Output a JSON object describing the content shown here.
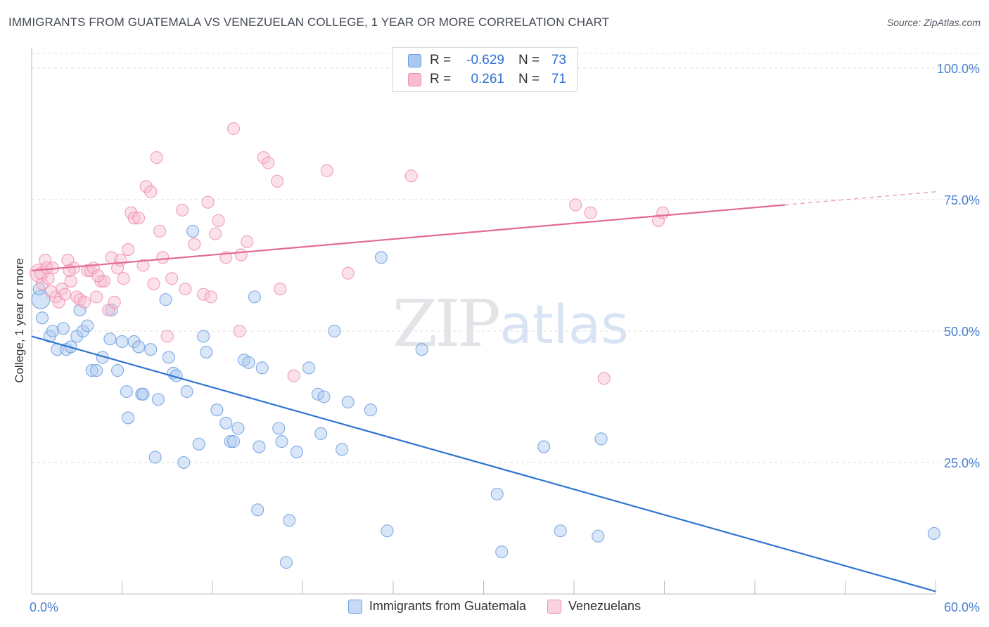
{
  "title": "IMMIGRANTS FROM GUATEMALA VS VENEZUELAN COLLEGE, 1 YEAR OR MORE CORRELATION CHART",
  "source": "Source: ZipAtlas.com",
  "watermark": {
    "zip": "ZIP",
    "atlas": "atlas"
  },
  "colors": {
    "blue_fill": "#aac8f0",
    "blue_stroke": "#6a9ee0",
    "blue_line": "#2f74d0",
    "pink_fill": "#f7bcd0",
    "pink_stroke": "#ee8fb0",
    "pink_line": "#e36a96",
    "grid": "#dddddd",
    "tick_label": "#4a7fd0"
  },
  "legend": {
    "rows": [
      {
        "r_label": "R =",
        "r_value": "-0.629",
        "n_label": "N =",
        "n_value": "73",
        "color": "blue"
      },
      {
        "r_label": "R =",
        "r_value": "0.261",
        "n_label": "N =",
        "n_value": "71",
        "color": "pink"
      }
    ]
  },
  "bottom_legend": [
    {
      "label": "Immigrants from Guatemala",
      "color": "blue"
    },
    {
      "label": "Venezuelans",
      "color": "pink"
    }
  ],
  "chart_data": {
    "type": "scatter",
    "title": "IMMIGRANTS FROM GUATEMALA VS VENEZUELAN COLLEGE, 1 YEAR OR MORE CORRELATION CHART",
    "xlabel": "",
    "ylabel": "College, 1 year or more",
    "xlim": [
      0,
      60
    ],
    "ylim": [
      0,
      105
    ],
    "x_ticks": [
      "0.0%",
      "60.0%"
    ],
    "y_ticks": [
      {
        "value": 25,
        "label": "25.0%"
      },
      {
        "value": 50,
        "label": "50.0%"
      },
      {
        "value": 75,
        "label": "75.0%"
      },
      {
        "value": 100,
        "label": "100.0%"
      }
    ],
    "grid": true,
    "legend_position": "top-center",
    "series": [
      {
        "name": "Immigrants from Guatemala",
        "color": "blue",
        "trend": {
          "x": [
            0,
            60
          ],
          "y": [
            49,
            0.5
          ],
          "dashed_from": null
        },
        "points": [
          [
            0.6,
            56,
            1
          ],
          [
            0.7,
            52.5,
            0
          ],
          [
            1.2,
            49,
            0
          ],
          [
            1.4,
            50,
            0
          ],
          [
            1.7,
            46.5,
            0
          ],
          [
            2.1,
            50.5,
            0
          ],
          [
            2.3,
            46.5,
            0
          ],
          [
            2.6,
            47,
            0
          ],
          [
            3.0,
            49,
            0
          ],
          [
            3.2,
            54,
            0
          ],
          [
            3.4,
            50,
            0
          ],
          [
            3.7,
            51,
            0
          ],
          [
            4.0,
            42.5,
            0
          ],
          [
            4.3,
            42.5,
            0
          ],
          [
            4.7,
            45,
            0
          ],
          [
            5.2,
            48.5,
            0
          ],
          [
            5.3,
            54,
            0
          ],
          [
            5.7,
            42.5,
            0
          ],
          [
            6.0,
            48,
            0
          ],
          [
            6.3,
            38.5,
            0
          ],
          [
            6.4,
            33.5,
            0
          ],
          [
            6.8,
            48,
            0
          ],
          [
            7.1,
            47,
            0
          ],
          [
            7.3,
            38,
            0
          ],
          [
            7.4,
            38,
            0
          ],
          [
            7.9,
            46.5,
            0
          ],
          [
            8.2,
            26,
            0
          ],
          [
            8.4,
            37,
            0
          ],
          [
            8.9,
            56,
            0
          ],
          [
            9.1,
            45,
            0
          ],
          [
            9.4,
            42,
            0
          ],
          [
            9.6,
            41.5,
            0
          ],
          [
            10.1,
            25,
            0
          ],
          [
            10.3,
            38.5,
            0
          ],
          [
            10.7,
            69,
            0
          ],
          [
            11.1,
            28.5,
            0
          ],
          [
            11.4,
            49,
            0
          ],
          [
            11.6,
            46,
            0
          ],
          [
            12.3,
            35,
            0
          ],
          [
            12.9,
            32.5,
            0
          ],
          [
            13.2,
            29,
            0
          ],
          [
            13.4,
            29,
            0
          ],
          [
            13.7,
            31.5,
            0
          ],
          [
            14.1,
            44.5,
            0
          ],
          [
            14.4,
            44,
            0
          ],
          [
            14.8,
            56.5,
            0
          ],
          [
            15.1,
            28,
            0
          ],
          [
            15.3,
            43,
            0
          ],
          [
            15.0,
            16,
            0
          ],
          [
            16.4,
            31.5,
            0
          ],
          [
            16.6,
            29,
            0
          ],
          [
            17.1,
            14,
            0
          ],
          [
            16.9,
            6,
            0
          ],
          [
            17.6,
            27,
            0
          ],
          [
            18.4,
            43,
            0
          ],
          [
            19.0,
            38,
            0
          ],
          [
            19.4,
            37.5,
            0
          ],
          [
            19.2,
            30.5,
            0
          ],
          [
            20.1,
            50,
            0
          ],
          [
            20.6,
            27.5,
            0
          ],
          [
            21.0,
            36.5,
            0
          ],
          [
            22.5,
            35,
            0
          ],
          [
            23.6,
            12,
            0
          ],
          [
            23.2,
            64,
            0
          ],
          [
            25.9,
            46.5,
            0
          ],
          [
            30.9,
            19,
            0
          ],
          [
            31.2,
            8,
            0
          ],
          [
            34.0,
            28,
            0
          ],
          [
            35.1,
            12,
            0
          ],
          [
            37.8,
            29.5,
            0
          ],
          [
            37.6,
            11,
            0
          ],
          [
            59.9,
            11.5,
            0
          ],
          [
            0.5,
            58,
            0
          ]
        ]
      },
      {
        "name": "Venezuelans",
        "color": "pink",
        "trend": {
          "x": [
            0,
            60
          ],
          "y": [
            61.5,
            76.5
          ],
          "dashed_from": 50
        },
        "points": [
          [
            0.5,
            61,
            1
          ],
          [
            0.7,
            59,
            0
          ],
          [
            0.9,
            63.5,
            0
          ],
          [
            1.1,
            60,
            0
          ],
          [
            1.4,
            62,
            0
          ],
          [
            1.6,
            56.5,
            0
          ],
          [
            1.8,
            55.5,
            0
          ],
          [
            2.0,
            58,
            0
          ],
          [
            2.2,
            57,
            0
          ],
          [
            2.4,
            63.5,
            0
          ],
          [
            2.6,
            59.5,
            0
          ],
          [
            2.8,
            62,
            0
          ],
          [
            3.0,
            56.5,
            0
          ],
          [
            3.2,
            56,
            0
          ],
          [
            3.5,
            55.5,
            0
          ],
          [
            3.7,
            61.5,
            0
          ],
          [
            3.9,
            61.5,
            0
          ],
          [
            4.1,
            62,
            0
          ],
          [
            4.3,
            56.5,
            0
          ],
          [
            4.6,
            59.5,
            0
          ],
          [
            4.8,
            59.5,
            0
          ],
          [
            5.1,
            54,
            0
          ],
          [
            5.3,
            64,
            0
          ],
          [
            5.5,
            55.5,
            0
          ],
          [
            5.7,
            62,
            0
          ],
          [
            5.9,
            63.5,
            0
          ],
          [
            6.1,
            60,
            0
          ],
          [
            6.4,
            65.5,
            0
          ],
          [
            6.6,
            72.5,
            0
          ],
          [
            6.8,
            71.5,
            0
          ],
          [
            7.1,
            71.5,
            0
          ],
          [
            7.4,
            62.5,
            0
          ],
          [
            7.6,
            77.5,
            0
          ],
          [
            7.9,
            76.5,
            0
          ],
          [
            8.1,
            59,
            0
          ],
          [
            8.3,
            83,
            0
          ],
          [
            8.5,
            69,
            0
          ],
          [
            8.7,
            64,
            0
          ],
          [
            9.0,
            49,
            0
          ],
          [
            9.3,
            60,
            0
          ],
          [
            10.0,
            73,
            0
          ],
          [
            10.2,
            58,
            0
          ],
          [
            10.8,
            66.5,
            0
          ],
          [
            11.4,
            57,
            0
          ],
          [
            11.7,
            74.5,
            0
          ],
          [
            11.9,
            56.5,
            0
          ],
          [
            12.2,
            68.5,
            0
          ],
          [
            12.4,
            71,
            0
          ],
          [
            12.9,
            64,
            0
          ],
          [
            13.4,
            88.5,
            0
          ],
          [
            13.8,
            50,
            0
          ],
          [
            13.9,
            64.5,
            0
          ],
          [
            14.3,
            67,
            0
          ],
          [
            15.4,
            83,
            0
          ],
          [
            15.7,
            82,
            0
          ],
          [
            16.3,
            78.5,
            0
          ],
          [
            16.5,
            58,
            0
          ],
          [
            17.4,
            41.5,
            0
          ],
          [
            19.6,
            80.5,
            0
          ],
          [
            21.0,
            61,
            0
          ],
          [
            25.2,
            79.5,
            0
          ],
          [
            36.1,
            74,
            0
          ],
          [
            37.1,
            72.5,
            0
          ],
          [
            38.0,
            41,
            0
          ],
          [
            41.6,
            71,
            0
          ],
          [
            41.9,
            72.5,
            0
          ],
          [
            0.6,
            61,
            0
          ],
          [
            1.0,
            62,
            0
          ],
          [
            1.3,
            57.5,
            0
          ],
          [
            2.5,
            61.5,
            0
          ],
          [
            4.4,
            60.5,
            0
          ]
        ]
      }
    ]
  }
}
